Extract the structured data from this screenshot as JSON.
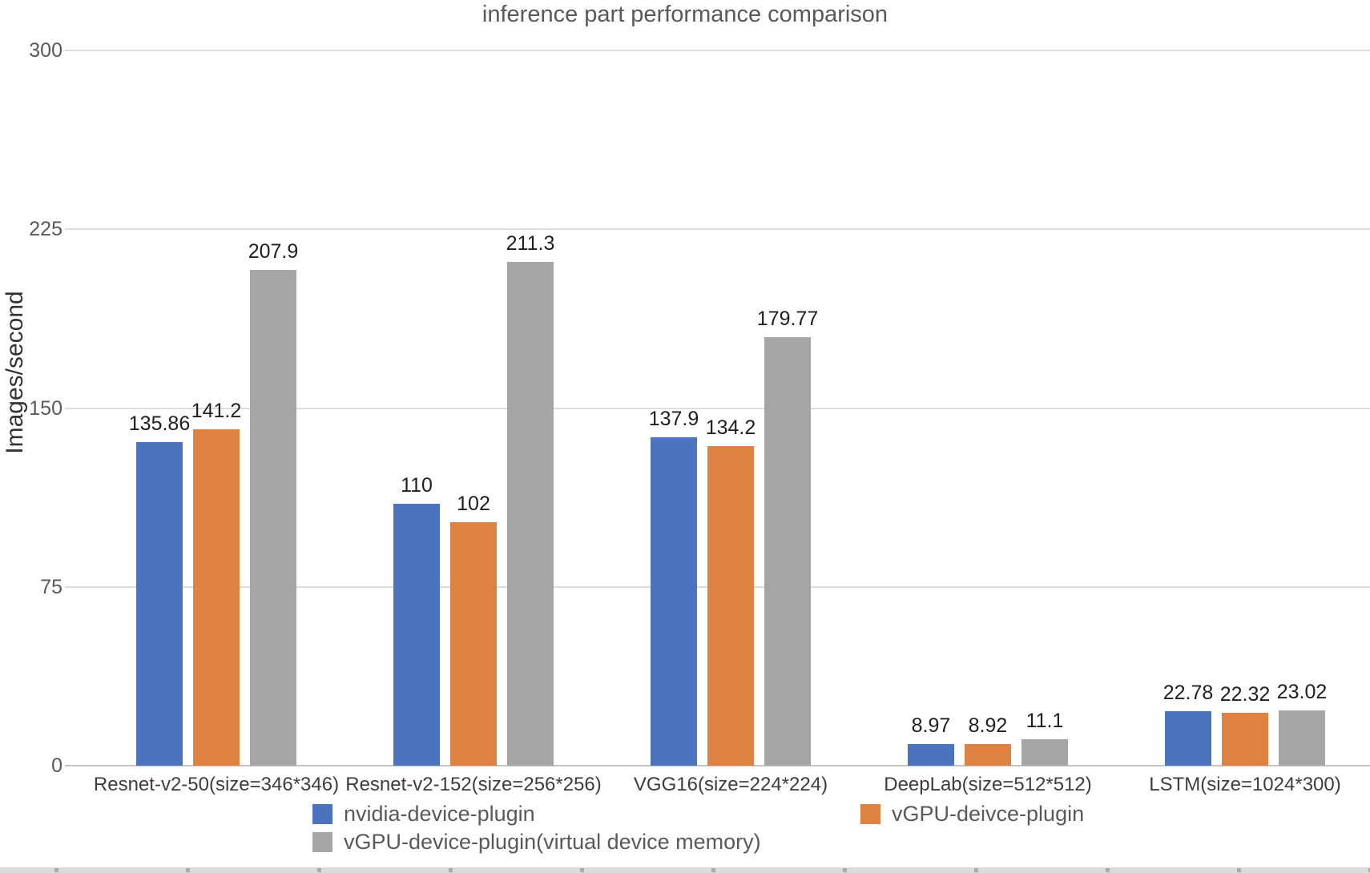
{
  "chart_data": {
    "type": "bar",
    "title": "inference part performance comparison",
    "ylabel": "Images/second",
    "ylim": [
      0,
      300
    ],
    "yticks": [
      0,
      75,
      150,
      225,
      300
    ],
    "grid": true,
    "legend_position": "bottom",
    "categories": [
      "Resnet-v2-50(size=346*346)",
      "Resnet-v2-152(size=256*256)",
      "VGG16(size=224*224)",
      "DeepLab(size=512*512)",
      "LSTM(size=1024*300)"
    ],
    "series": [
      {
        "name": "nvidia-device-plugin",
        "color": "#4C73BE",
        "values": [
          135.86,
          110,
          137.9,
          8.97,
          22.78
        ]
      },
      {
        "name": "vGPU-deivce-plugin",
        "color": "#DE8244",
        "values": [
          141.2,
          102,
          134.2,
          8.92,
          22.32
        ]
      },
      {
        "name": "vGPU-device-plugin(virtual device memory)",
        "color": "#A6A5A5",
        "values": [
          207.9,
          211.3,
          179.77,
          11.1,
          23.02
        ]
      }
    ],
    "colors": {
      "gridline": "#DCDCDC",
      "axis_line": "#C4C4C4",
      "title_text": "#595959",
      "tick_text": "#595959",
      "category_text": "#3D3D3D",
      "value_label_text": "#1F1F1F",
      "legend_text": "#595959"
    }
  }
}
